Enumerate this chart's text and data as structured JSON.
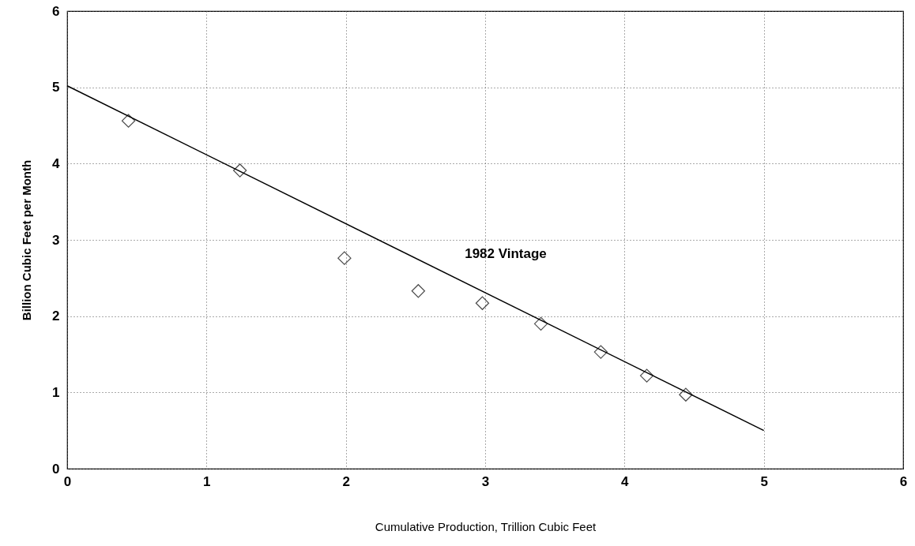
{
  "chart_data": {
    "type": "scatter",
    "xlabel": "Cumulative Production, Trillion Cubic Feet",
    "ylabel": "Billion Cubic Feet per Month",
    "x": [
      0.44,
      1.24,
      1.99,
      2.52,
      2.98,
      3.4,
      3.83,
      4.16,
      4.44
    ],
    "series": [
      {
        "color": "#000000",
        "marker": "diamond",
        "values": [
          4.56,
          3.91,
          2.76,
          2.33,
          2.17,
          1.9,
          1.53,
          1.22,
          0.97
        ]
      },
      {
        "type": "line",
        "color": "#000000",
        "marker": "none",
        "line_style": "solid",
        "x": [
          0,
          5
        ],
        "values": [
          5.02,
          0.5
        ]
      }
    ],
    "annotations": [
      "1982 Vintage"
    ],
    "xlim": [
      0,
      6
    ],
    "xticks": [
      0,
      1,
      2,
      3,
      4,
      5,
      6
    ],
    "ylim": [
      0,
      6
    ],
    "yticks": [
      0,
      1,
      2,
      3,
      4,
      5,
      6
    ],
    "grid": true
  }
}
